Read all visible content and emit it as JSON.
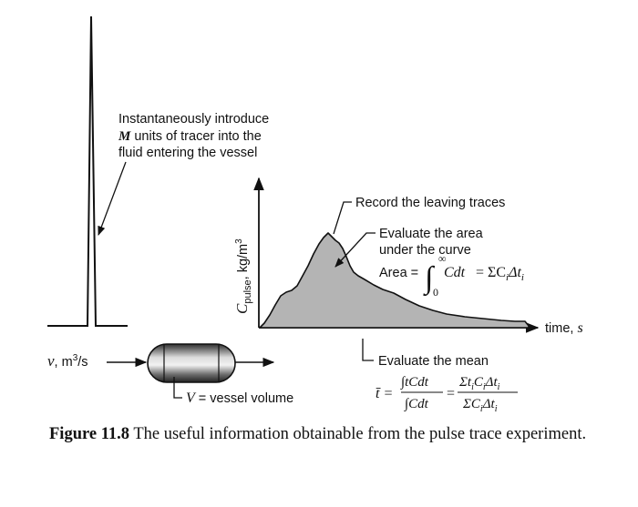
{
  "labels": {
    "inject_line1": "Instantaneously introduce",
    "inject_line2_var": "M",
    "inject_line2_rest": " units of tracer into the",
    "inject_line3": "fluid entering the vessel",
    "record": "Record the leaving traces",
    "area_line1": "Evaluate the area",
    "area_line2": "under the curve",
    "area_prefix": "Area =",
    "area_upper_limit": "∞",
    "area_lower_limit": "0",
    "area_integrand": "Cdt",
    "area_sum": "= ΣC",
    "area_sum_sub1": "i",
    "area_sum_delta": "Δt",
    "area_sum_sub2": "i",
    "y_axis_main": "C",
    "y_axis_sub": "pulse",
    "y_axis_unit": ", kg/m",
    "y_axis_sup": "3",
    "x_axis": "time, ",
    "x_axis_unit": "s",
    "flow_var": "v",
    "flow_unit": ", m",
    "flow_sup": "3",
    "flow_unit_end": "/s",
    "vessel": "V = vessel volume",
    "mean_title": "Evaluate the mean",
    "mean_lhs": "t̄ =",
    "mean_num1": "∫tCdt",
    "mean_den1": "∫Cdt",
    "mean_eq": "=",
    "mean_num2": "Σt",
    "mean_num2_rest": "C",
    "mean_num2_delta": "Δt",
    "mean_den2": "ΣC",
    "mean_den2_delta": "Δt",
    "mean_sub": "i"
  },
  "caption": {
    "label": "Figure 11.8",
    "text": " The useful information obtainable from the pulse trace experiment."
  },
  "colors": {
    "curve_fill": "#b4b4b4",
    "ink": "#111111",
    "vessel_dark": "#3a3a3a",
    "vessel_light": "#c9c9c9"
  }
}
